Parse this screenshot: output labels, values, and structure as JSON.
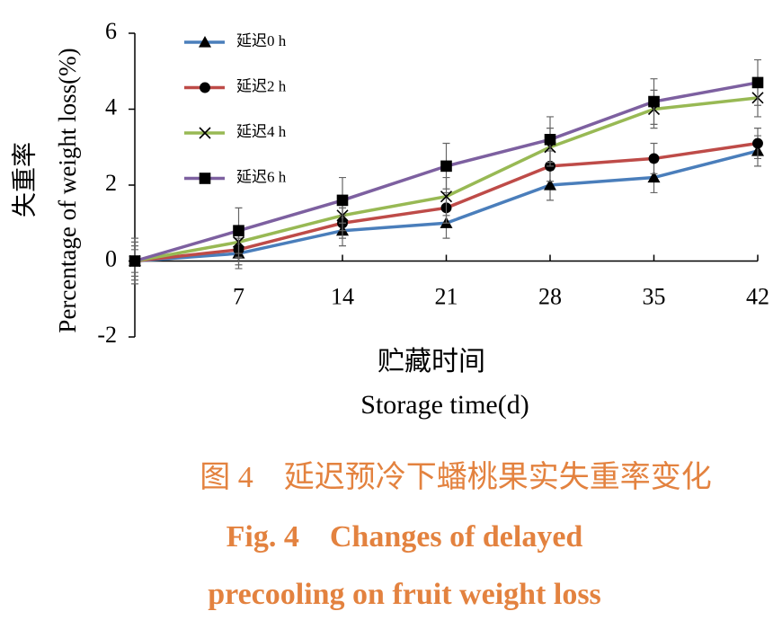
{
  "chart_data": {
    "type": "line",
    "y_title_cn": "失重率",
    "y_title": "Percentage of weight loss(%)",
    "x_title_cn": "贮藏时间",
    "x_title": "Storage time(d)",
    "caption": [
      "图 4　延迟预冷下蟠桃果实失重率变化",
      "Fig. 4　Changes of delayed",
      "precooling on fruit weight loss"
    ],
    "x": [
      0,
      7,
      14,
      21,
      28,
      35,
      42
    ],
    "xlim": [
      0,
      42
    ],
    "xticks": [
      7,
      14,
      21,
      28,
      35,
      42
    ],
    "ylim": [
      -2,
      6
    ],
    "yticks": [
      -2,
      0,
      2,
      4,
      6
    ],
    "series": [
      {
        "name": "延迟0 h",
        "color": "#4a7ebb",
        "marker": "triangle",
        "values": [
          0,
          0.2,
          0.8,
          1.0,
          2.0,
          2.2,
          2.9
        ],
        "errors": [
          0.6,
          0.4,
          0.4,
          0.4,
          0.4,
          0.4,
          0.4
        ]
      },
      {
        "name": "延迟2 h",
        "color": "#be4b48",
        "marker": "circle",
        "values": [
          0,
          0.3,
          1.0,
          1.4,
          2.5,
          2.7,
          3.1
        ],
        "errors": [
          0.5,
          0.4,
          0.4,
          0.4,
          0.4,
          0.4,
          0.4
        ]
      },
      {
        "name": "延迟4 h",
        "color": "#98b954",
        "marker": "x",
        "values": [
          0,
          0.5,
          1.2,
          1.7,
          3.0,
          4.0,
          4.3
        ],
        "errors": [
          0.4,
          0.4,
          0.4,
          0.5,
          0.5,
          0.5,
          0.5
        ]
      },
      {
        "name": "延迟6 h",
        "color": "#7d60a0",
        "marker": "square",
        "values": [
          0,
          0.8,
          1.6,
          2.5,
          3.2,
          4.2,
          4.7
        ],
        "errors": [
          0.3,
          0.6,
          0.6,
          0.6,
          0.6,
          0.6,
          0.6
        ]
      }
    ]
  }
}
